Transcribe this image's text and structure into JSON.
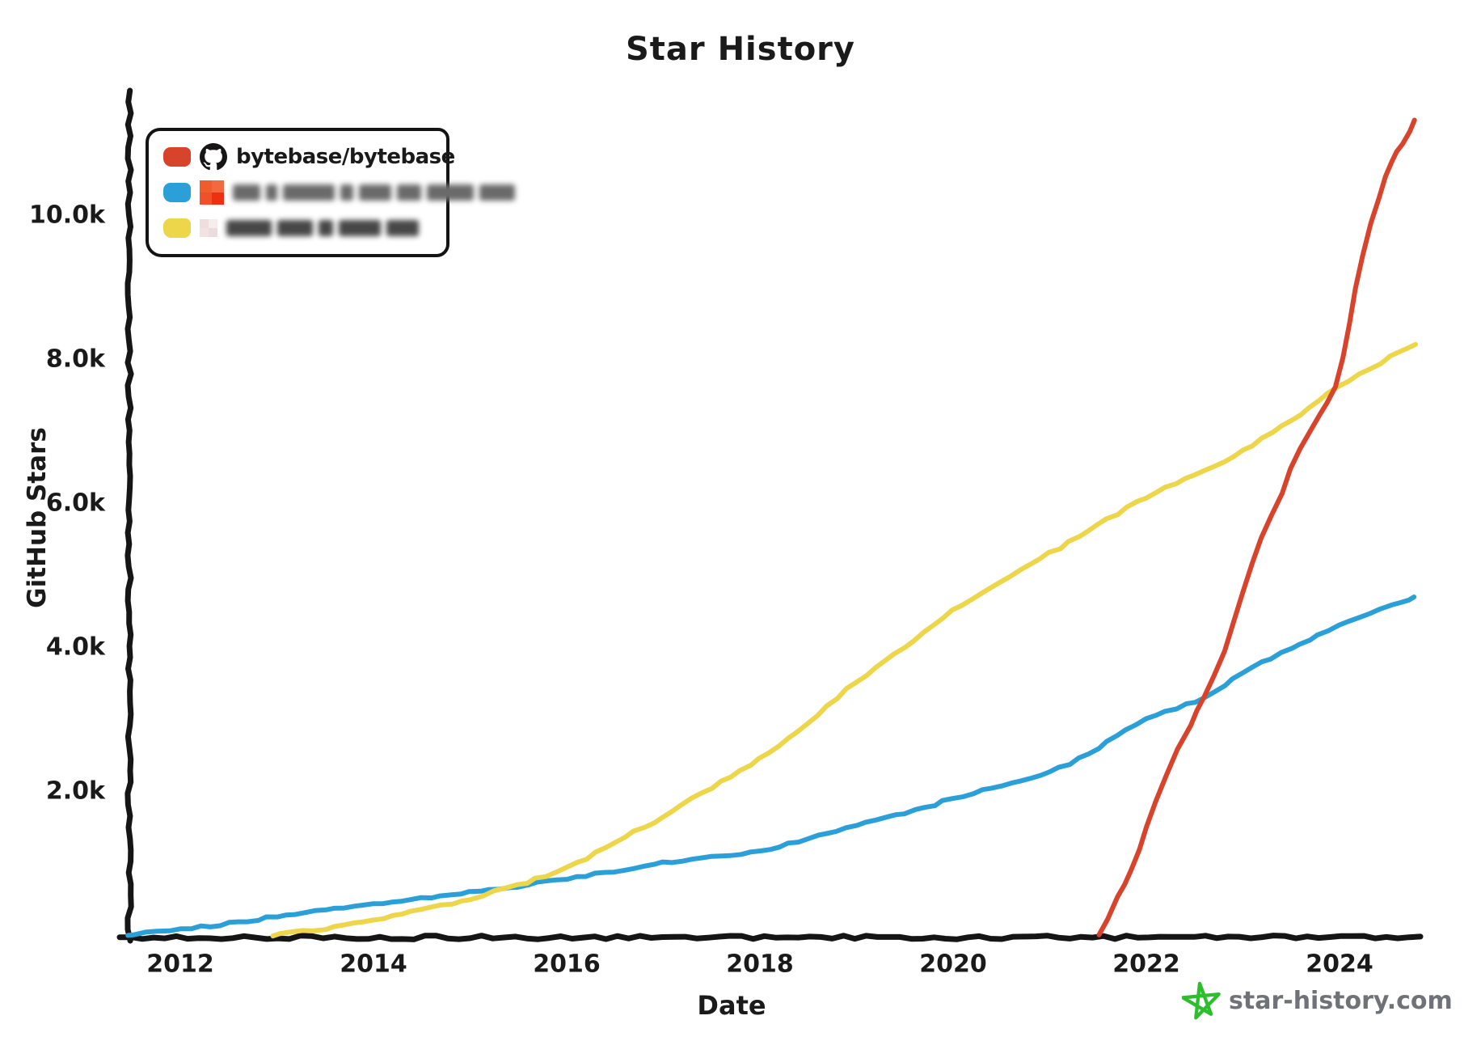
{
  "chart_data": {
    "type": "line",
    "title": "Star History",
    "xlabel": "Date",
    "ylabel": "GitHub Stars",
    "x_ticks": [
      2012,
      2014,
      2016,
      2018,
      2020,
      2022,
      2024
    ],
    "y_ticks": [
      {
        "value": 2000,
        "label": "2.0k"
      },
      {
        "value": 4000,
        "label": "4.0k"
      },
      {
        "value": 6000,
        "label": "6.0k"
      },
      {
        "value": 8000,
        "label": "8.0k"
      },
      {
        "value": 10000,
        "label": "10.0k"
      }
    ],
    "xlim": [
      2011.3,
      2024.95
    ],
    "ylim": [
      0,
      11750
    ],
    "grid": false,
    "legend_position": "top-left",
    "series": [
      {
        "name": "blurred-repo-1",
        "color": "#2ba0d8",
        "points": [
          [
            2011.45,
            0
          ],
          [
            2012,
            80
          ],
          [
            2012.5,
            160
          ],
          [
            2013,
            260
          ],
          [
            2013.5,
            350
          ],
          [
            2014,
            430
          ],
          [
            2014.5,
            510
          ],
          [
            2015,
            590
          ],
          [
            2015.5,
            680
          ],
          [
            2016,
            790
          ],
          [
            2016.5,
            890
          ],
          [
            2017,
            1000
          ],
          [
            2017.5,
            1080
          ],
          [
            2018,
            1160
          ],
          [
            2018.5,
            1340
          ],
          [
            2019,
            1530
          ],
          [
            2019.5,
            1700
          ],
          [
            2020,
            1890
          ],
          [
            2020.5,
            2080
          ],
          [
            2021,
            2260
          ],
          [
            2021.5,
            2600
          ],
          [
            2022,
            3000
          ],
          [
            2022.6,
            3300
          ],
          [
            2023,
            3650
          ],
          [
            2023.5,
            3980
          ],
          [
            2024,
            4300
          ],
          [
            2024.78,
            4700
          ]
        ]
      },
      {
        "name": "blurred-repo-2",
        "color": "#eed64a",
        "points": [
          [
            2012.95,
            0
          ],
          [
            2013.5,
            90
          ],
          [
            2014,
            215
          ],
          [
            2014.5,
            350
          ],
          [
            2015,
            500
          ],
          [
            2015.25,
            600
          ],
          [
            2015.5,
            700
          ],
          [
            2016,
            930
          ],
          [
            2016.5,
            1300
          ],
          [
            2017,
            1650
          ],
          [
            2017.5,
            2050
          ],
          [
            2018,
            2450
          ],
          [
            2018.5,
            2950
          ],
          [
            2019,
            3520
          ],
          [
            2019.5,
            4000
          ],
          [
            2020,
            4500
          ],
          [
            2020.5,
            4900
          ],
          [
            2021,
            5300
          ],
          [
            2021.5,
            5700
          ],
          [
            2022,
            6080
          ],
          [
            2022.5,
            6400
          ],
          [
            2023,
            6730
          ],
          [
            2023.5,
            7150
          ],
          [
            2024,
            7630
          ],
          [
            2024.78,
            8210
          ]
        ]
      },
      {
        "name": "bytebase/bytebase",
        "color": "#d8432b",
        "points": [
          [
            2021.5,
            0
          ],
          [
            2021.7,
            520
          ],
          [
            2021.85,
            900
          ],
          [
            2022.0,
            1500
          ],
          [
            2022.2,
            2200
          ],
          [
            2022.45,
            2900
          ],
          [
            2022.6,
            3300
          ],
          [
            2022.8,
            3950
          ],
          [
            2023.0,
            4800
          ],
          [
            2023.2,
            5500
          ],
          [
            2023.4,
            6150
          ],
          [
            2023.6,
            6750
          ],
          [
            2023.8,
            7250
          ],
          [
            2023.95,
            7620
          ],
          [
            2024.1,
            8500
          ],
          [
            2024.25,
            9450
          ],
          [
            2024.4,
            10250
          ],
          [
            2024.55,
            10750
          ],
          [
            2024.65,
            11000
          ],
          [
            2024.78,
            11330
          ]
        ]
      }
    ]
  },
  "legend": {
    "items": [
      {
        "label": "bytebase/bytebase",
        "blurred": false,
        "swatch_color": "#d8432b",
        "icon": "github-icon",
        "icon_color": "#171515"
      },
      {
        "label": "",
        "blurred": true,
        "swatch_color": "#2ba0d8",
        "icon": "avatar-blurred",
        "avatar_size": 30,
        "avatar_colors": [
          "#f2683f",
          "#ee3012",
          "#f0512a",
          "#ef5d2c"
        ],
        "blur_segments": [
          34,
          14,
          64,
          16,
          40,
          30,
          58,
          44
        ],
        "blur_color": "#6a6a6a"
      },
      {
        "label": "",
        "blurred": true,
        "swatch_color": "#eed64a",
        "icon": "avatar-blurred",
        "avatar_size": 22,
        "avatar_colors": [
          "#f6ecec",
          "#eddcdc",
          "#f2e2e2",
          "#efdede"
        ],
        "blur_segments": [
          56,
          44,
          18,
          52,
          40
        ],
        "blur_color": "#474747"
      }
    ]
  },
  "watermark": {
    "text": "star-history.com",
    "star_color": "#2cbe2c",
    "text_color": "#6f7378"
  },
  "axis_color": "#151515"
}
